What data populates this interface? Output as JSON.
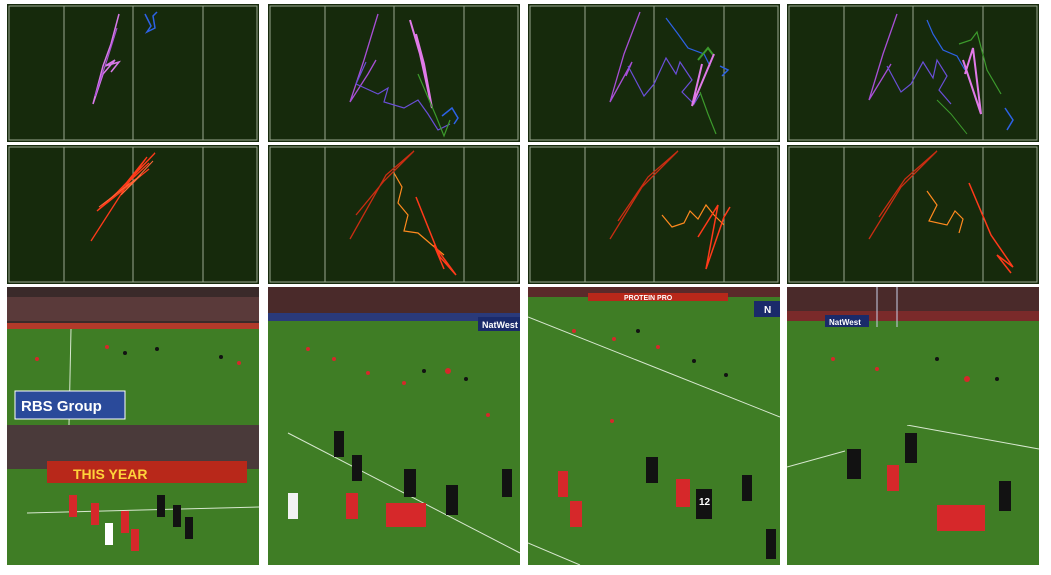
{
  "columns": [
    {
      "id": "c1",
      "ads": {
        "rbs": "RBS Group",
        "this_year": "THIS YEAR"
      }
    },
    {
      "id": "c2",
      "ads": {
        "natwest": "NatWest"
      }
    },
    {
      "id": "c3",
      "ads": {
        "protein": "PROTEIN PRO",
        "partial": "N"
      },
      "player_number": "12"
    },
    {
      "id": "c4",
      "ads": {
        "natwest": "NatWest"
      }
    }
  ],
  "colors": {
    "pitch_bg": "#162a0c",
    "pitch_lines": "#9aa88f",
    "team_red_tracks": [
      "#ff3a1a",
      "#c92d12",
      "#ff8a1e"
    ],
    "team_blue_tracks": [
      "#b257e0",
      "#6a4fd8",
      "#2d62e6",
      "#3c9a2c",
      "#e07ae8"
    ],
    "grass": "#3f7d25",
    "red_kit": "#d6282a",
    "black_kit": "#121212"
  }
}
